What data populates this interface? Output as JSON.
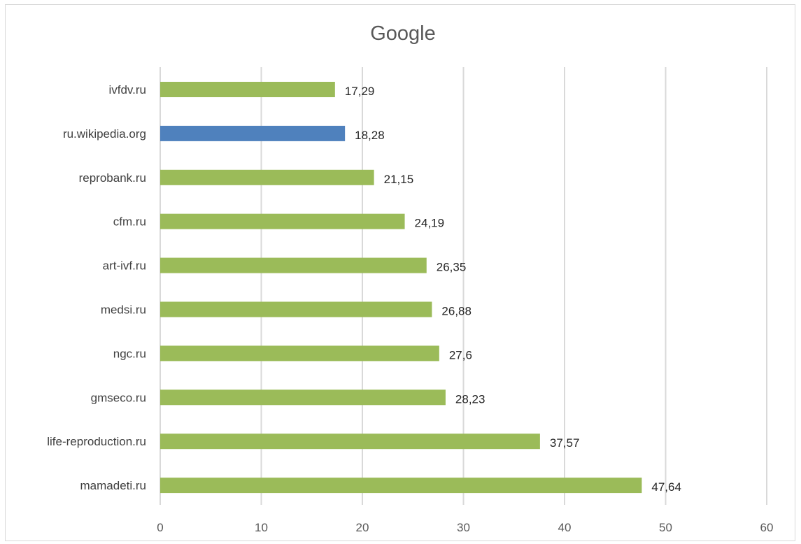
{
  "chart_data": {
    "type": "bar",
    "orientation": "horizontal",
    "title": "Google",
    "xlabel": "",
    "ylabel": "",
    "categories": [
      "ivfdv.ru",
      "ru.wikipedia.org",
      "reprobank.ru",
      "cfm.ru",
      "art-ivf.ru",
      "medsi.ru",
      "ngc.ru",
      "gmseco.ru",
      "life-reproduction.ru",
      "mamadeti.ru"
    ],
    "values": [
      17.29,
      18.28,
      21.15,
      24.19,
      26.35,
      26.88,
      27.6,
      28.23,
      37.57,
      47.64
    ],
    "value_labels": [
      "17,29",
      "18,28",
      "21,15",
      "24,19",
      "26,35",
      "26,88",
      "27,6",
      "28,23",
      "37,57",
      "47,64"
    ],
    "bar_colors": [
      "#9bbb59",
      "#4f81bd",
      "#9bbb59",
      "#9bbb59",
      "#9bbb59",
      "#9bbb59",
      "#9bbb59",
      "#9bbb59",
      "#9bbb59",
      "#9bbb59"
    ],
    "xlim": [
      0,
      60
    ],
    "xticks": [
      0,
      10,
      20,
      30,
      40,
      50,
      60
    ],
    "grid": "vertical",
    "legend": "none"
  }
}
